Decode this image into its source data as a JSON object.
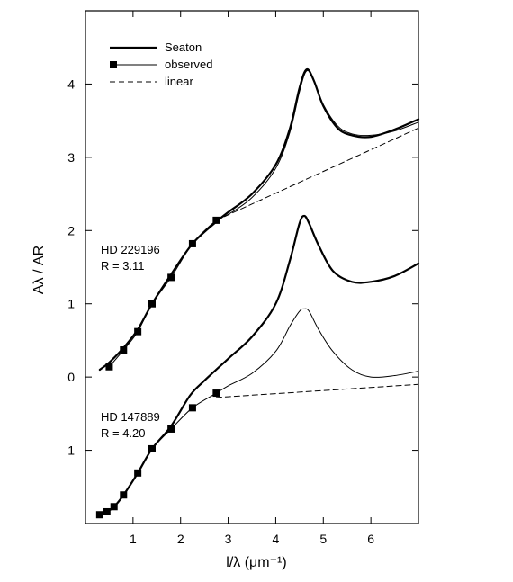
{
  "chart_data": {
    "type": "line",
    "xlabel": "l/λ (μm⁻¹)",
    "ylabel": "Aλ / AR",
    "xlim": [
      0,
      7
    ],
    "x_ticks": [
      "1",
      "2",
      "3",
      "4",
      "5",
      "6"
    ],
    "y_ticks": [
      {
        "label": "4",
        "value": 4
      },
      {
        "label": "3",
        "value": 3
      },
      {
        "label": "2",
        "value": 2
      },
      {
        "label": "1",
        "value": 1
      },
      {
        "label": "0",
        "value": 0
      },
      {
        "label": "1",
        "value": -1
      }
    ],
    "ylim": [
      -2.0,
      5.0
    ],
    "legend": {
      "placement": "top-left",
      "entries": [
        {
          "label": "Seaton",
          "style": "thick-solid"
        },
        {
          "label": "observed",
          "style": "thin-solid-square-marker"
        },
        {
          "label": "linear",
          "style": "dashed"
        }
      ]
    },
    "annotations": [
      {
        "lines": [
          "HD 229196",
          "R = 3.11"
        ],
        "x": 0.3,
        "y": 1.75
      },
      {
        "lines": [
          "HD 147889",
          "R = 4.20"
        ],
        "x": 0.3,
        "y": -0.55
      }
    ],
    "series": [
      {
        "group": "HD 229196",
        "style": "thick-solid",
        "x": [
          0.3,
          0.5,
          0.8,
          1.1,
          1.4,
          1.8,
          2.25,
          2.75,
          3.0,
          3.5,
          4.0,
          4.3,
          4.5,
          4.65,
          4.8,
          5.0,
          5.3,
          5.6,
          6.0,
          6.5,
          7.0
        ],
        "y": [
          0.1,
          0.2,
          0.4,
          0.65,
          1.0,
          1.4,
          1.82,
          2.12,
          2.25,
          2.5,
          2.9,
          3.4,
          3.95,
          4.2,
          4.05,
          3.7,
          3.4,
          3.3,
          3.28,
          3.38,
          3.52
        ]
      },
      {
        "group": "HD 229196",
        "name": "observed",
        "style": "thin-solid",
        "x": [
          0.5,
          0.8,
          1.1,
          1.4,
          1.8,
          2.25,
          2.75,
          3.0,
          3.5,
          4.0,
          4.3,
          4.5,
          4.65,
          4.8,
          5.0,
          5.3,
          5.6,
          6.0,
          6.5,
          7.0
        ],
        "y": [
          0.14,
          0.37,
          0.62,
          1.0,
          1.36,
          1.82,
          2.14,
          2.22,
          2.45,
          2.85,
          3.35,
          3.9,
          4.18,
          4.05,
          3.72,
          3.43,
          3.32,
          3.3,
          3.36,
          3.48
        ]
      },
      {
        "group": "HD 229196",
        "name": "observed-points",
        "style": "square-markers",
        "x": [
          0.5,
          0.8,
          1.1,
          1.4,
          1.8,
          2.25,
          2.75
        ],
        "y": [
          0.14,
          0.37,
          0.62,
          1.0,
          1.36,
          1.82,
          2.14
        ]
      },
      {
        "group": "HD 229196",
        "style": "dashed",
        "x": [
          2.75,
          7.0
        ],
        "y": [
          2.14,
          3.4
        ]
      },
      {
        "group": "HD 147889",
        "style": "thick-solid",
        "x": [
          0.3,
          0.45,
          0.6,
          0.8,
          1.1,
          1.4,
          1.8,
          2.2,
          2.5,
          3.0,
          3.5,
          4.0,
          4.3,
          4.5,
          4.6,
          4.7,
          4.9,
          5.2,
          5.6,
          6.0,
          6.5,
          7.0
        ],
        "y": [
          -1.88,
          -1.84,
          -1.77,
          -1.61,
          -1.31,
          -0.98,
          -0.67,
          -0.25,
          -0.05,
          0.25,
          0.55,
          1.0,
          1.6,
          2.1,
          2.2,
          2.1,
          1.8,
          1.45,
          1.3,
          1.3,
          1.38,
          1.55
        ]
      },
      {
        "group": "HD 147889",
        "name": "observed",
        "style": "thin-solid",
        "x": [
          0.3,
          0.45,
          0.6,
          0.8,
          1.1,
          1.4,
          1.8,
          2.25,
          2.75,
          3.0,
          3.5,
          4.0,
          4.3,
          4.5,
          4.6,
          4.7,
          4.9,
          5.2,
          5.6,
          6.0,
          6.5,
          7.0
        ],
        "y": [
          -1.88,
          -1.84,
          -1.77,
          -1.61,
          -1.31,
          -0.98,
          -0.71,
          -0.42,
          -0.22,
          -0.12,
          0.05,
          0.35,
          0.7,
          0.9,
          0.93,
          0.9,
          0.65,
          0.35,
          0.1,
          0.0,
          0.02,
          0.08
        ]
      },
      {
        "group": "HD 147889",
        "name": "observed-points",
        "style": "square-markers",
        "x": [
          0.3,
          0.45,
          0.6,
          0.8,
          1.1,
          1.4,
          1.8,
          2.25,
          2.75
        ],
        "y": [
          -1.88,
          -1.84,
          -1.77,
          -1.61,
          -1.31,
          -0.98,
          -0.71,
          -0.42,
          -0.22
        ]
      },
      {
        "group": "HD 147889",
        "style": "dashed",
        "x": [
          2.75,
          7.0
        ],
        "y": [
          -0.28,
          -0.1
        ]
      }
    ]
  }
}
